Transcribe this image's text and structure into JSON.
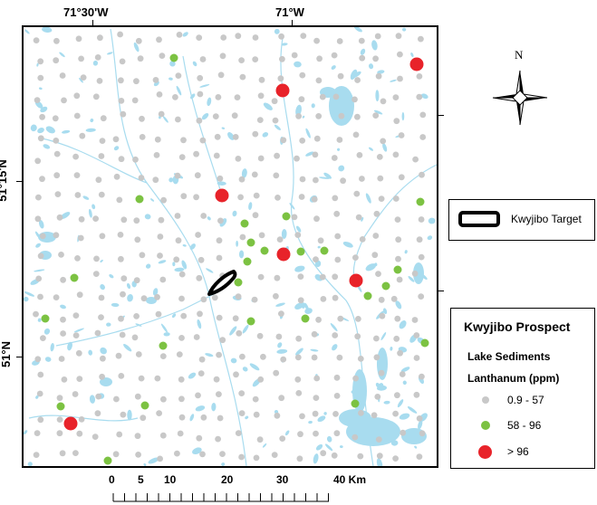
{
  "map": {
    "lon_labels": [
      "71°30'W",
      "71°W"
    ],
    "lat_labels": [
      "51°15'N",
      "51°N"
    ],
    "north_arrow_label": "N",
    "colors": {
      "lake": "#a8dcef",
      "low": "#c8c8c8",
      "mid": "#7cc242",
      "high": "#e8232a"
    },
    "samples_high": [
      [
        458,
        69
      ],
      [
        310,
        98
      ],
      [
        243,
        214
      ],
      [
        311,
        279
      ],
      [
        391,
        308
      ],
      [
        76,
        466
      ]
    ],
    "samples_mid": [
      [
        190,
        62
      ],
      [
        152,
        218
      ],
      [
        268,
        245
      ],
      [
        275,
        266
      ],
      [
        462,
        221
      ],
      [
        314,
        237
      ],
      [
        290,
        275
      ],
      [
        330,
        276
      ],
      [
        356,
        275
      ],
      [
        271,
        287
      ],
      [
        80,
        305
      ],
      [
        261,
        310
      ],
      [
        404,
        325
      ],
      [
        424,
        314
      ],
      [
        437,
        296
      ],
      [
        48,
        350
      ],
      [
        335,
        350
      ],
      [
        178,
        380
      ],
      [
        275,
        353
      ],
      [
        467,
        377
      ],
      [
        65,
        447
      ],
      [
        158,
        446
      ],
      [
        390,
        444
      ],
      [
        117,
        507
      ]
    ],
    "target_name": "Kwyjibo Target"
  },
  "legend": {
    "target_label": "Kwyjibo Target",
    "title": "Kwyjibo Prospect",
    "subtitle1": "Lake Sediments",
    "subtitle2": "Lanthanum (ppm)",
    "classes": [
      {
        "label": "0.9 - 57",
        "color": "#c8c8c8"
      },
      {
        "label": "58 - 96",
        "color": "#7cc242"
      },
      {
        "label": "> 96",
        "color": "#e8232a"
      }
    ]
  },
  "scalebar": {
    "labels": [
      "0",
      "5",
      "10",
      "20",
      "30",
      "40 Km"
    ]
  }
}
